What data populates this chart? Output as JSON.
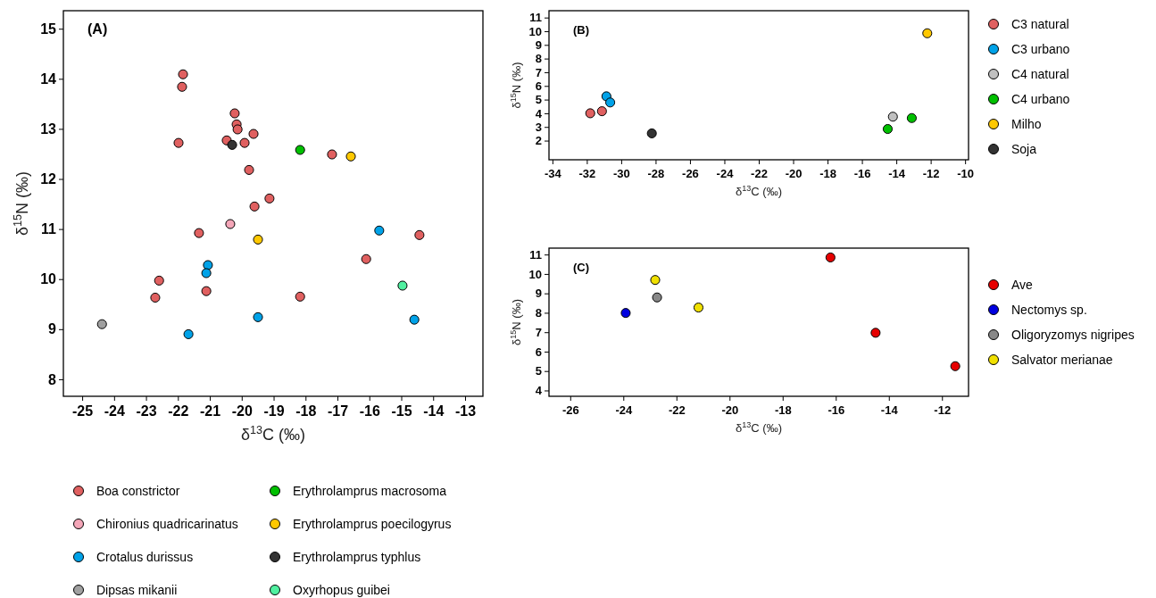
{
  "chart_data": [
    {
      "type": "scatter",
      "title": "(A)",
      "xlabel": "δ$^{13}$C (‰)",
      "ylabel": "δ$^{15}$N (‰)",
      "xlim": [
        -25.59,
        -12.44
      ],
      "ylim": [
        7.66,
        15.36
      ],
      "xticks": [
        -25,
        -24,
        -23,
        -22,
        -21,
        -20,
        -19,
        -18,
        -17,
        -16,
        -15,
        -14,
        -13
      ],
      "yticks": [
        8,
        9,
        10,
        11,
        12,
        13,
        14,
        15
      ],
      "marker": "circle",
      "legend": "bottom",
      "series": [
        {
          "name": "Boa constrictor",
          "color": "#e06060",
          "x": [
            -21.84,
            -21.87,
            -21.98,
            -20.22,
            -20.16,
            -20.13,
            -19.63,
            -20.47,
            -19.91,
            -19.77,
            -19.13,
            -19.6,
            -21.34,
            -22.59,
            -22.71,
            -21.11,
            -17.17,
            -16.1,
            -14.43,
            -18.17
          ],
          "values": [
            14.09,
            13.84,
            12.72,
            13.31,
            13.09,
            12.99,
            12.9,
            12.77,
            12.72,
            12.18,
            11.61,
            11.45,
            10.92,
            9.97,
            9.63,
            9.76,
            12.49,
            10.4,
            10.88,
            9.65
          ]
        },
        {
          "name": "Chironius quadricarinatus",
          "color": "#f4a6b8",
          "x": [
            -20.36
          ],
          "values": [
            11.1
          ]
        },
        {
          "name": "Crotalus durissus",
          "color": "#00a2e8",
          "x": [
            -21.06,
            -21.11,
            -21.67,
            -19.49,
            -15.69,
            -14.59
          ],
          "values": [
            10.28,
            10.12,
            8.9,
            9.24,
            10.97,
            9.19
          ]
        },
        {
          "name": "Dipsas mikanii",
          "color": "#a0a0a0",
          "x": [
            -24.38
          ],
          "values": [
            9.1
          ]
        },
        {
          "name": "Erythrolamprus macrosoma",
          "color": "#00c000",
          "x": [
            -18.17
          ],
          "values": [
            12.58
          ]
        },
        {
          "name": "Erythrolamprus poecilogyrus",
          "color": "#ffc800",
          "x": [
            -16.58,
            -19.49
          ],
          "values": [
            12.45,
            10.79
          ]
        },
        {
          "name": "Erythrolamprus typhlus",
          "color": "#333333",
          "x": [
            -20.3
          ],
          "values": [
            12.68
          ]
        },
        {
          "name": "Oxyrhopus guibei",
          "color": "#50f0a0",
          "x": [
            -14.96
          ],
          "values": [
            9.87
          ]
        }
      ]
    },
    {
      "type": "scatter",
      "title": "(B)",
      "xlabel": "δ$^{13}$C (‰)",
      "ylabel": "δ$^{15}$N (‰)",
      "xlim": [
        -34.2,
        -9.8
      ],
      "ylim": [
        0.6,
        11.5
      ],
      "xticks": [
        -34,
        -32,
        -30,
        -28,
        -26,
        -24,
        -22,
        -20,
        -18,
        -16,
        -14,
        -12,
        -10
      ],
      "yticks": [
        2,
        3,
        4,
        5,
        6,
        7,
        8,
        9,
        10,
        11
      ],
      "marker": "circle",
      "legend": "right",
      "series": [
        {
          "name": "C3 natural",
          "color": "#e06060",
          "x": [
            -31.8,
            -31.12
          ],
          "values": [
            4.0,
            4.15
          ]
        },
        {
          "name": "C3 urbano",
          "color": "#00a2e8",
          "x": [
            -30.86,
            -30.64
          ],
          "values": [
            5.24,
            4.79
          ]
        },
        {
          "name": "C4 natural",
          "color": "#c0c0c0",
          "x": [
            -14.2
          ],
          "values": [
            3.75
          ]
        },
        {
          "name": "C4 urbano",
          "color": "#00c000",
          "x": [
            -14.5,
            -13.1
          ],
          "values": [
            2.85,
            3.65
          ]
        },
        {
          "name": "Milho",
          "color": "#ffc800",
          "x": [
            -12.2
          ],
          "values": [
            9.85
          ]
        },
        {
          "name": "Soja",
          "color": "#333333",
          "x": [
            -28.22
          ],
          "values": [
            2.53
          ]
        }
      ]
    },
    {
      "type": "scatter",
      "title": "(C)",
      "xlabel": "δ$^{13}$C (‰)",
      "ylabel": "δ$^{15}$N (‰)",
      "xlim": [
        -26.8,
        -11.0
      ],
      "ylim": [
        3.7,
        11.33
      ],
      "xticks": [
        -26,
        -24,
        -22,
        -20,
        -18,
        -16,
        -14,
        -12
      ],
      "yticks": [
        4,
        5,
        6,
        7,
        8,
        9,
        10,
        11
      ],
      "marker": "circle",
      "legend": "right",
      "series": [
        {
          "name": "Ave",
          "color": "#e60000",
          "x": [
            -16.2,
            -14.5,
            -11.5
          ],
          "values": [
            10.85,
            6.97,
            5.25
          ]
        },
        {
          "name": "Nectomys sp.",
          "color": "#0000e0",
          "x": [
            -23.91
          ],
          "values": [
            7.99
          ]
        },
        {
          "name": "Oligoryzomys nigripes",
          "color": "#888888",
          "x": [
            -22.73
          ],
          "values": [
            8.79
          ]
        },
        {
          "name": "Salvator merianae",
          "color": "#f0e000",
          "x": [
            -22.8,
            -21.17
          ],
          "values": [
            9.69,
            8.27
          ]
        }
      ]
    }
  ]
}
